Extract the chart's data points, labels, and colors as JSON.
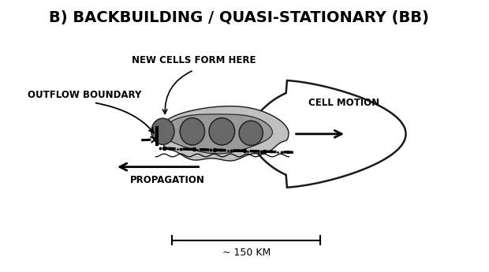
{
  "title": "B) BACKBUILDING / QUASI-STATIONARY (BB)",
  "title_fontsize": 14,
  "title_fontweight": "bold",
  "bg_color": "#ffffff",
  "text_color": "#000000",
  "label_outflow": "OUTFLOW BOUNDARY",
  "label_cells": "NEW CELLS FORM HERE",
  "label_cell_motion": "CELL MOTION",
  "label_propagation": "PROPAGATION",
  "label_scale": "~ 150 KM",
  "outer_storm_color": "#ffffff",
  "outer_storm_edge": "#1a1a1a",
  "mid_storm_color": "#c0c0c0",
  "inner_storm_color": "#999999",
  "dark_cell_color": "#686868",
  "cell_edge_color": "#1a1a1a",
  "xlim": [
    0,
    10
  ],
  "ylim": [
    0,
    6.5
  ]
}
